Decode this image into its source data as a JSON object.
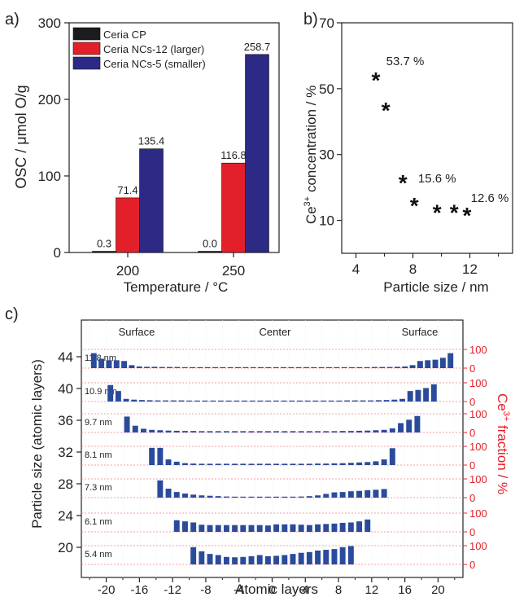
{
  "panels": {
    "a": "a)",
    "b": "b)",
    "c": "c)"
  },
  "chart_data": [
    {
      "type": "bar",
      "panel": "a",
      "categories": [
        "200",
        "250"
      ],
      "series": [
        {
          "name": "Ceria CP",
          "color": "#1c1c1c",
          "values": [
            0.3,
            0.0
          ]
        },
        {
          "name": "Ceria NCs-12 (larger)",
          "color": "#e3202a",
          "values": [
            71.4,
            116.8
          ]
        },
        {
          "name": "Ceria NCs-5 (smaller)",
          "color": "#2d2a86",
          "values": [
            135.4,
            258.7
          ]
        }
      ],
      "value_labels": [
        [
          "0.3",
          "71.4",
          "135.4"
        ],
        [
          "0.0",
          "116.8",
          "258.7"
        ]
      ],
      "xlabel": "Temperature / °C",
      "ylabel": "OSC / μmol O/g",
      "ylim": [
        0,
        300
      ],
      "yticks": [
        "0",
        "100",
        "200",
        "300"
      ],
      "legend": "top-left",
      "grid": false
    },
    {
      "type": "scatter",
      "panel": "b",
      "marker": "*",
      "x": [
        5.4,
        6.1,
        7.3,
        8.1,
        9.7,
        10.9,
        11.8
      ],
      "y": [
        53.7,
        44.5,
        22.5,
        15.6,
        13.5,
        13.5,
        12.6
      ],
      "annotations": [
        "53.7 %",
        "15.6 %",
        "12.6 %"
      ],
      "xlabel": "Particle size / nm",
      "ylabel_main": "Ce",
      "ylabel_sup": "3+",
      "ylabel_rest": " concentration / %",
      "xlim": [
        3,
        15
      ],
      "ylim": [
        0,
        70
      ],
      "xticks": [
        "4",
        "8",
        "12"
      ],
      "yticks": [
        "10",
        "30",
        "50",
        "70"
      ],
      "grid": false
    },
    {
      "type": "bar",
      "panel": "c",
      "xlabel": "Atomic layers",
      "ylabel": "Particle size (atomic layers)",
      "right_ylabel_main": "Ce",
      "right_ylabel_sup": "3+",
      "right_ylabel_rest": " fraction / %",
      "xlim": [
        -23,
        23
      ],
      "xticks": [
        "-20",
        "-16",
        "-12",
        "-8",
        "-4",
        "0",
        "4",
        "8",
        "12",
        "16",
        "20"
      ],
      "left_yticks": [
        "44",
        "40",
        "36",
        "32",
        "28",
        "24",
        "20"
      ],
      "right_ytick_labels": [
        "100",
        "0"
      ],
      "region_labels": [
        "Surface",
        "Center",
        "Surface"
      ],
      "grid": true,
      "accent_color": "#e3202a",
      "bar_color": "#2a4a9c",
      "rows": [
        {
          "label": "11.8 nm",
          "half_layers": 22,
          "values": [
            80,
            50,
            42,
            42,
            38,
            16,
            9,
            7,
            7,
            6,
            6,
            6,
            5,
            5,
            5,
            5,
            5,
            5,
            5,
            5,
            5,
            5,
            5,
            5,
            5,
            5,
            5,
            5,
            5,
            5,
            5,
            5,
            5,
            5,
            5,
            5,
            5,
            6,
            6,
            6,
            7,
            9,
            16,
            38,
            42,
            45,
            55,
            80
          ]
        },
        {
          "label": "10.9 nm",
          "half_layers": 20,
          "values": [
            88,
            56,
            14,
            10,
            8,
            7,
            6,
            6,
            6,
            6,
            5,
            5,
            5,
            5,
            5,
            5,
            5,
            5,
            5,
            5,
            5,
            5,
            5,
            5,
            5,
            5,
            5,
            5,
            5,
            5,
            6,
            6,
            6,
            6,
            7,
            8,
            10,
            14,
            56,
            62,
            72,
            92
          ]
        },
        {
          "label": "9.7 nm",
          "half_layers": 18,
          "values": [
            85,
            36,
            20,
            14,
            12,
            10,
            9,
            8,
            8,
            7,
            7,
            7,
            7,
            7,
            7,
            7,
            7,
            7,
            7,
            7,
            7,
            7,
            7,
            7,
            7,
            7,
            8,
            8,
            9,
            10,
            12,
            14,
            22,
            50,
            68,
            88
          ]
        },
        {
          "label": "8.1 nm",
          "half_layers": 15,
          "values": [
            92,
            92,
            30,
            18,
            10,
            8,
            7,
            7,
            7,
            7,
            7,
            7,
            7,
            7,
            7,
            7,
            7,
            7,
            7,
            7,
            8,
            8,
            9,
            10,
            12,
            14,
            16,
            20,
            30,
            90
          ]
        },
        {
          "label": "7.3 nm",
          "half_layers": 14,
          "values": [
            92,
            48,
            30,
            22,
            16,
            12,
            10,
            8,
            6,
            5,
            5,
            4,
            4,
            4,
            4,
            4,
            5,
            6,
            8,
            12,
            20,
            28,
            30,
            34,
            36,
            40,
            42,
            46
          ]
        },
        {
          "label": "6.1 nm",
          "half_layers": 12,
          "values": [
            62,
            56,
            50,
            38,
            36,
            36,
            36,
            36,
            36,
            36,
            36,
            34,
            40,
            40,
            40,
            38,
            36,
            40,
            42,
            44,
            48,
            50,
            56,
            66
          ]
        },
        {
          "label": "5.4 nm",
          "half_layers": 10,
          "values": [
            92,
            70,
            56,
            50,
            40,
            38,
            40,
            44,
            50,
            44,
            46,
            50,
            56,
            62,
            66,
            74,
            78,
            82,
            92,
            98
          ]
        }
      ]
    }
  ]
}
